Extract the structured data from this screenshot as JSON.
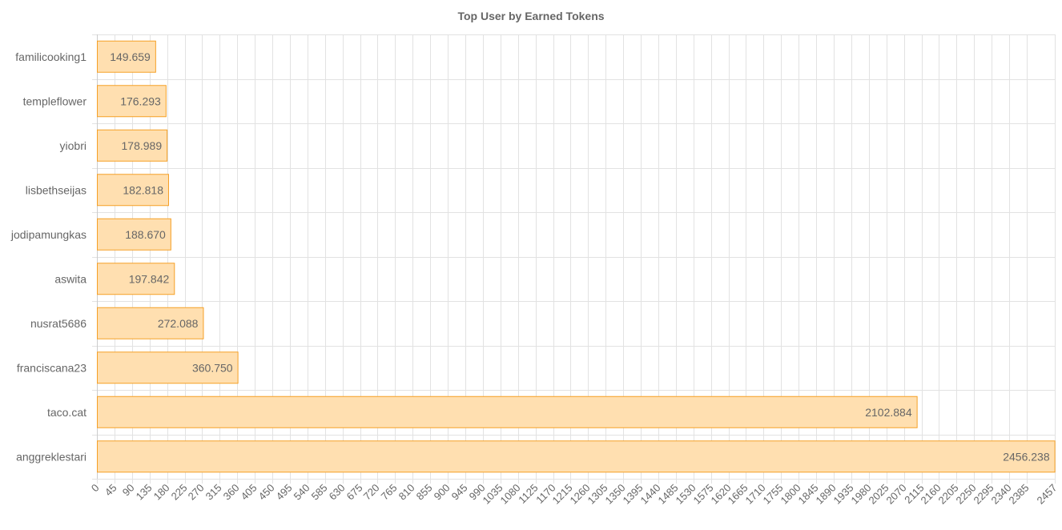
{
  "chart_data": {
    "type": "bar",
    "orientation": "horizontal",
    "title": "Top User by Earned Tokens",
    "xlabel": "",
    "ylabel": "",
    "categories": [
      "familicooking1",
      "templeflower",
      "yiobri",
      "lisbethseijas",
      "jodipamungkas",
      "aswita",
      "nusrat5686",
      "franciscana23",
      "taco.cat",
      "anggreklestari"
    ],
    "values": [
      149.659,
      176.293,
      178.989,
      182.818,
      188.67,
      197.842,
      272.088,
      360.75,
      2102.884,
      2456.238
    ],
    "value_labels": [
      "149.659",
      "176.293",
      "178.989",
      "182.818",
      "188.670",
      "197.842",
      "272.088",
      "360.750",
      "2102.884",
      "2456.238"
    ],
    "xlim": [
      0,
      2457
    ],
    "xticks": [
      0,
      45,
      90,
      135,
      180,
      225,
      270,
      315,
      360,
      405,
      450,
      495,
      540,
      585,
      630,
      675,
      720,
      765,
      810,
      855,
      900,
      945,
      990,
      1035,
      1080,
      1125,
      1170,
      1215,
      1260,
      1305,
      1350,
      1395,
      1440,
      1485,
      1530,
      1575,
      1620,
      1665,
      1710,
      1755,
      1800,
      1845,
      1890,
      1935,
      1980,
      2025,
      2070,
      2115,
      2160,
      2205,
      2250,
      2295,
      2340,
      2385,
      2457
    ],
    "grid": true,
    "legend": "none",
    "colors": {
      "bar_fill": "#ffdfb0",
      "bar_stroke": "#f5a026",
      "text": "#666666",
      "grid": "#e2e2e2"
    }
  }
}
